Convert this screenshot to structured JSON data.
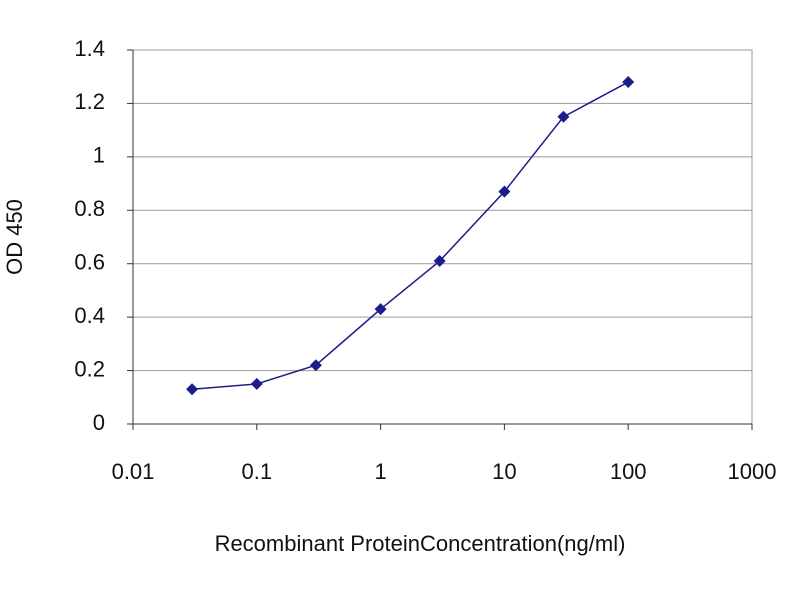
{
  "chart_data": {
    "type": "line",
    "xlabel": "Recombinant ProteinConcentration(ng/ml)",
    "ylabel": "OD 450",
    "x": [
      0.03,
      0.1,
      0.3,
      1,
      3,
      10,
      30,
      100
    ],
    "values": [
      0.13,
      0.15,
      0.22,
      0.43,
      0.61,
      0.87,
      1.15,
      1.28
    ],
    "color": "#1c1c8c",
    "xscale": "log",
    "xlim": [
      0.01,
      1000
    ],
    "xticks": [
      0.01,
      0.1,
      1,
      10,
      100,
      1000
    ],
    "ylim": [
      0,
      1.4
    ],
    "yticks": [
      0,
      0.2,
      0.4,
      0.6,
      0.8,
      1,
      1.2,
      1.4
    ],
    "grid": true
  }
}
